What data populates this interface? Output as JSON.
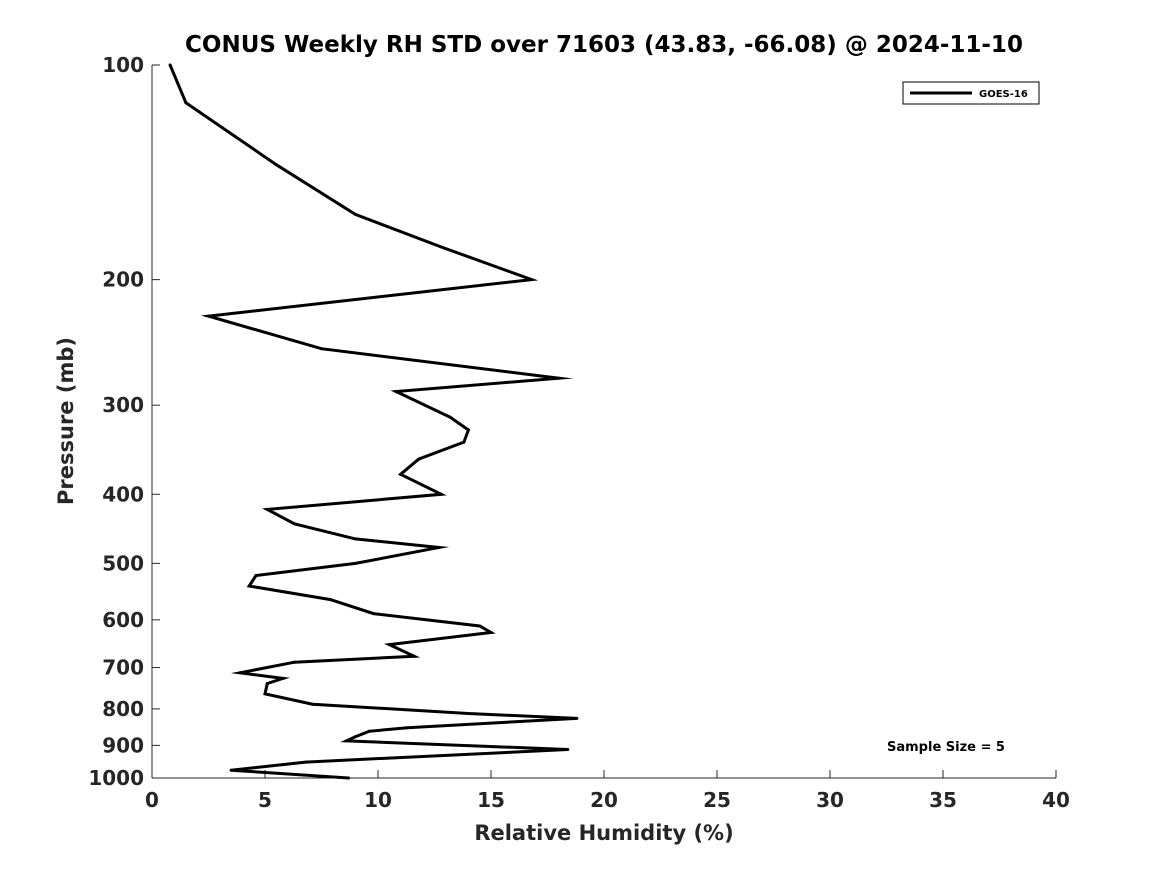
{
  "chart_data": {
    "type": "line",
    "title": "CONUS Weekly RH STD over 71603 (43.83, -66.08) @ 2024-11-10",
    "xlabel": "Relative Humidity (%)",
    "ylabel": "Pressure (mb)",
    "xlim": [
      0,
      40
    ],
    "ylim": [
      100,
      1000
    ],
    "y_scale": "log",
    "y_reversed": true,
    "x_ticks": [
      "0",
      "5",
      "10",
      "15",
      "20",
      "25",
      "30",
      "35",
      "40"
    ],
    "y_ticks": [
      "100",
      "200",
      "300",
      "400",
      "500",
      "600",
      "700",
      "800",
      "900",
      "1000"
    ],
    "grid": false,
    "legend_position": "top-right",
    "series": [
      {
        "name": "GOES-16",
        "color": "#000000",
        "x": [
          0.8,
          1.5,
          5.5,
          9.0,
          12.8,
          16.8,
          2.5,
          7.5,
          18.0,
          10.8,
          13.2,
          14.0,
          13.8,
          11.8,
          11.0,
          12.8,
          5.1,
          6.3,
          9.0,
          12.7,
          9.0,
          4.6,
          4.3,
          7.9,
          9.8,
          14.5,
          15.0,
          10.5,
          11.6,
          6.3,
          3.9,
          5.8,
          5.1,
          5.0,
          7.1,
          14.0,
          18.8,
          11.3,
          9.6,
          9.0,
          8.6,
          18.4,
          6.8,
          3.5,
          8.7
        ],
        "y": [
          100,
          113,
          138,
          162,
          180,
          200,
          225,
          250,
          275,
          287,
          312,
          325,
          338,
          357,
          375,
          400,
          420,
          440,
          462,
          475,
          500,
          520,
          538,
          562,
          588,
          612,
          625,
          650,
          675,
          688,
          712,
          725,
          737,
          762,
          788,
          812,
          825,
          850,
          860,
          875,
          887,
          912,
          950,
          975,
          1000
        ]
      }
    ],
    "annotations": [
      "Sample Size = 5"
    ]
  }
}
